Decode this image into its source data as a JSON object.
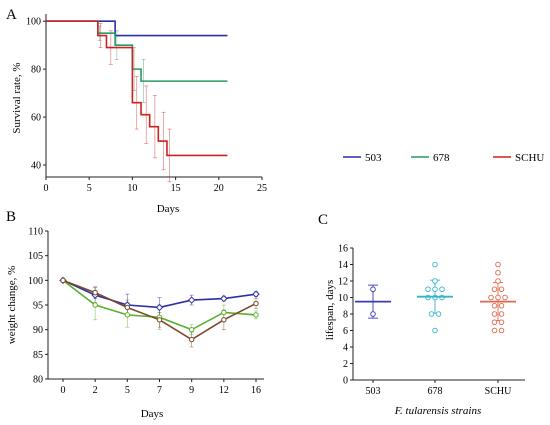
{
  "chart_data": [
    {
      "panel": "A",
      "type": "line",
      "step": true,
      "xlabel": "Days",
      "ylabel": "Survival rate, %",
      "xlim": [
        0,
        25
      ],
      "ylim": [
        35,
        103
      ],
      "xticks": [
        "0",
        "5",
        "10",
        "15",
        "20",
        "25"
      ],
      "yticks": [
        "40",
        "60",
        "80",
        "100"
      ],
      "legend_position": "bottom-right",
      "series": [
        {
          "name": "503",
          "color": "#2b2fa8",
          "x": [
            0,
            8,
            8,
            21
          ],
          "y": [
            100,
            100,
            94,
            94
          ],
          "error": []
        },
        {
          "name": "678",
          "color": "#2a9a63",
          "x": [
            0,
            6,
            6,
            8,
            8,
            10,
            10,
            11,
            11,
            21
          ],
          "y": [
            100,
            100,
            95,
            95,
            90,
            90,
            80,
            80,
            75,
            75
          ],
          "error": [
            {
              "x": 6.2,
              "y": 95,
              "e": 3
            },
            {
              "x": 8.2,
              "y": 90,
              "e": 6
            },
            {
              "x": 10.2,
              "y": 80,
              "e": 9
            },
            {
              "x": 11.3,
              "y": 75,
              "e": 9
            }
          ]
        },
        {
          "name": "SCHU",
          "color": "#cc2222",
          "x": [
            0,
            6,
            6,
            7,
            7,
            10,
            10,
            11,
            11,
            12,
            12,
            13,
            13,
            14,
            14,
            21
          ],
          "y": [
            100,
            100,
            94,
            94,
            89,
            89,
            66,
            66,
            61,
            61,
            56,
            56,
            50,
            50,
            44,
            44
          ],
          "error": [
            {
              "x": 6.3,
              "y": 94,
              "e": 5
            },
            {
              "x": 7.5,
              "y": 89,
              "e": 7
            },
            {
              "x": 10.5,
              "y": 66,
              "e": 11
            },
            {
              "x": 11.6,
              "y": 61,
              "e": 12
            },
            {
              "x": 12.6,
              "y": 56,
              "e": 13
            },
            {
              "x": 13.6,
              "y": 50,
              "e": 12
            },
            {
              "x": 14.3,
              "y": 44,
              "e": 11
            }
          ]
        }
      ]
    },
    {
      "panel": "B",
      "type": "line",
      "xlabel": "Days",
      "ylabel": "weight change, %",
      "categories": [
        "0",
        "2",
        "5",
        "7",
        "9",
        "12",
        "16"
      ],
      "ylim": [
        80,
        110
      ],
      "yticks": [
        "80",
        "85",
        "90",
        "95",
        "100",
        "105",
        "110"
      ],
      "series": [
        {
          "color": "#2b2fa8",
          "marker": "diamond",
          "values": [
            100,
            97,
            95,
            94.5,
            96,
            96.3,
            97.2
          ],
          "errors": [
            0.3,
            1.5,
            2.2,
            2,
            1,
            0.5,
            0.5
          ]
        },
        {
          "color": "#5ab02e",
          "marker": "circle",
          "values": [
            100,
            95,
            93,
            92.5,
            90,
            93.5,
            93
          ],
          "errors": [
            0.3,
            3,
            2.5,
            2.5,
            1,
            1.5,
            0.8
          ]
        },
        {
          "color": "#7a4a2a",
          "marker": "circle",
          "values": [
            100,
            97.5,
            94.5,
            92,
            88,
            92,
            95.3
          ],
          "errors": [
            0.3,
            1.2,
            1.5,
            1.5,
            1.5,
            2,
            1
          ]
        }
      ]
    },
    {
      "panel": "C",
      "type": "scatter",
      "xlabel": "F. tularensis strains",
      "ylabel": "lifespan, days",
      "categories": [
        "503",
        "678",
        "SCHU"
      ],
      "ylim": [
        0,
        16
      ],
      "yticks": [
        "0",
        "2",
        "4",
        "6",
        "8",
        "10",
        "12",
        "14",
        "16"
      ],
      "groups": [
        {
          "category": "503",
          "color": "#3a3ab8",
          "mean": 9.5,
          "sd": 2,
          "points": [
            11,
            8
          ]
        },
        {
          "category": "678",
          "color": "#33b5cc",
          "mean": 10.1,
          "sd": 2,
          "points": [
            14,
            12,
            11,
            11,
            11,
            10,
            10,
            10,
            8,
            8,
            6
          ]
        },
        {
          "category": "SCHU",
          "color": "#e0664a",
          "mean": 9.5,
          "sd": 2.3,
          "points": [
            14,
            13,
            12,
            11,
            11,
            10,
            10,
            10,
            9,
            9,
            8,
            8,
            7,
            7,
            6,
            6
          ]
        }
      ]
    }
  ]
}
